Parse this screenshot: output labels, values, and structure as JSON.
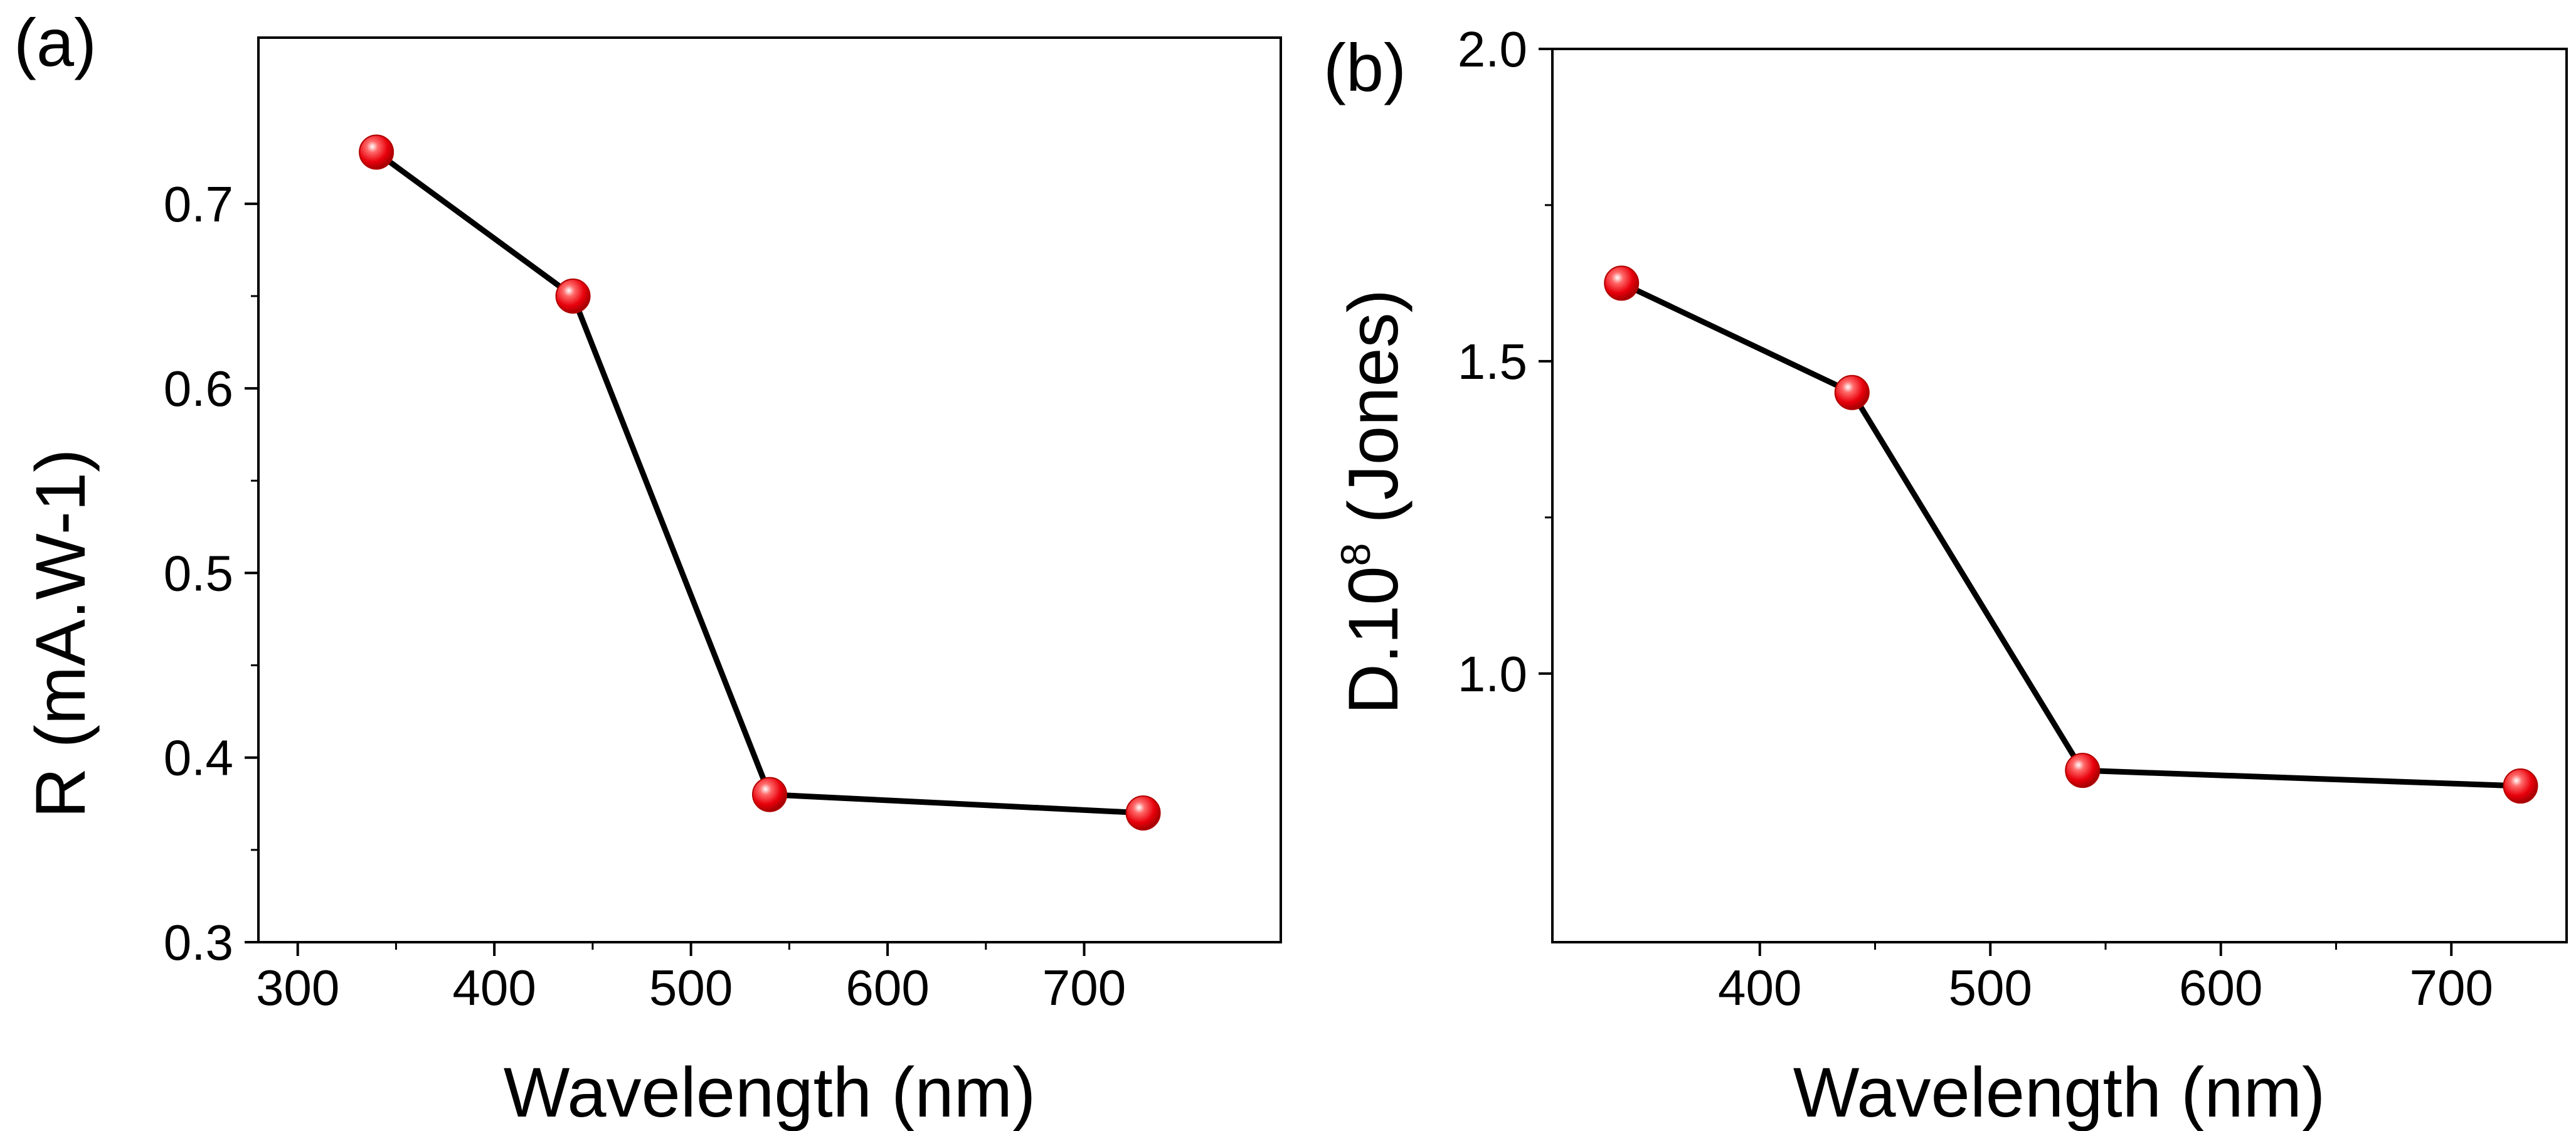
{
  "chart_data": [
    {
      "type": "line",
      "panel_label": "(a)",
      "title": "",
      "xlabel": "Wavelength (nm)",
      "ylabel": "R (mA.W-1)",
      "x": [
        340,
        440,
        540,
        730
      ],
      "series": [
        {
          "name": "R",
          "values": [
            0.728,
            0.65,
            0.38,
            0.37
          ]
        }
      ],
      "xlim": [
        280,
        800
      ],
      "ylim": [
        0.3,
        0.79
      ],
      "xticks": [
        300,
        400,
        500,
        600,
        700
      ],
      "xtick_labels": [
        "300",
        "400",
        "500",
        "600",
        "700"
      ],
      "yticks": [
        0.3,
        0.4,
        0.5,
        0.6,
        0.7
      ],
      "ytick_labels": [
        "0.3",
        "0.4",
        "0.5",
        "0.6",
        "0.7"
      ],
      "grid": false,
      "marker_color": "#e8000b",
      "line_color": "#000000"
    },
    {
      "type": "line",
      "panel_label": "(b)",
      "title": "",
      "xlabel": "Wavelength (nm)",
      "ylabel": "D.10",
      "ylabel_superscript": "8",
      "ylabel_suffix": " (Jones)",
      "x": [
        340,
        440,
        540,
        730
      ],
      "series": [
        {
          "name": "D",
          "values": [
            1.625,
            1.45,
            0.845,
            0.82
          ]
        }
      ],
      "xlim": [
        310,
        750
      ],
      "ylim": [
        0.57,
        2.0
      ],
      "xticks": [
        400,
        500,
        600,
        700
      ],
      "xtick_labels": [
        "400",
        "500",
        "600",
        "700"
      ],
      "yticks": [
        1.0,
        1.5,
        2.0
      ],
      "ytick_labels": [
        "1.0",
        "1.5",
        "2.0"
      ],
      "grid": false,
      "marker_color": "#e8000b",
      "line_color": "#000000"
    }
  ]
}
